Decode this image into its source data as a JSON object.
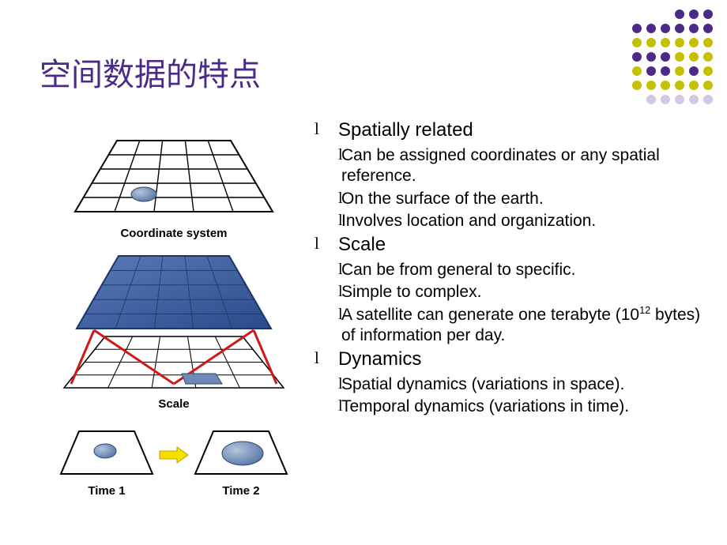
{
  "title": "空间数据的特点",
  "decoration": {
    "rows": [
      [
        null,
        null,
        null,
        "#4b2b87",
        "#4b2b87",
        "#4b2b87"
      ],
      [
        "#4b2b87",
        "#4b2b87",
        "#4b2b87",
        "#4b2b87",
        "#4b2b87",
        "#4b2b87"
      ],
      [
        "#c5c000",
        "#c5c000",
        "#c5c000",
        "#c5c000",
        "#c5c000",
        "#c5c000"
      ],
      [
        "#4b2b87",
        "#4b2b87",
        "#4b2b87",
        "#c5c000",
        "#c5c000",
        "#c5c000"
      ],
      [
        "#c5c000",
        "#4b2b87",
        "#4b2b87",
        "#c5c000",
        "#4b2b87",
        "#c5c000"
      ],
      [
        "#c5c000",
        "#c5c000",
        "#c5c000",
        "#c5c000",
        "#c5c000",
        "#c5c000"
      ],
      [
        null,
        "#d2c9e6",
        "#d2c9e6",
        "#d2c9e6",
        "#d2c9e6",
        "#d2c9e6"
      ]
    ]
  },
  "bullets": [
    {
      "level": 1,
      "text": "Spatially related"
    },
    {
      "level": 2,
      "text": "Can be assigned coordinates or any spatial reference."
    },
    {
      "level": 2,
      "text": "On the surface of the earth."
    },
    {
      "level": 2,
      "text": "Involves location and organization."
    },
    {
      "level": 1,
      "text": "Scale"
    },
    {
      "level": 2,
      "text": "Can be from general to specific."
    },
    {
      "level": 2,
      "text": "Simple to complex."
    },
    {
      "level": 2,
      "html": "A satellite can generate one terabyte (10<sup>12</sup> bytes) of information per day."
    },
    {
      "level": 1,
      "text": "Dynamics"
    },
    {
      "level": 2,
      "text": "Spatial dynamics (variations in space)."
    },
    {
      "level": 2,
      "text": "Temporal dynamics (variations in time)."
    }
  ],
  "diagrams": {
    "coord": {
      "label": "Coordinate  system",
      "grid_stroke": "#000000",
      "ellipse_fill": "#6e8bb5",
      "ellipse_stroke": "#2d4670"
    },
    "scale": {
      "label": "Scale",
      "grid_stroke": "#000000",
      "top_fill": "#3a5a9a",
      "top_grid": "#1d3668",
      "red": "#d01818",
      "rect_fill": "#6e8bb5",
      "rect_stroke": "#2d4670"
    },
    "time": {
      "label1": "Time 1",
      "label2": "Time 2",
      "grid_stroke": "#000000",
      "ellipse_fill": "#6e8bb5",
      "ellipse_stroke": "#2d4670",
      "arrow_fill": "#f5e000",
      "arrow_stroke": "#c0a000"
    }
  }
}
